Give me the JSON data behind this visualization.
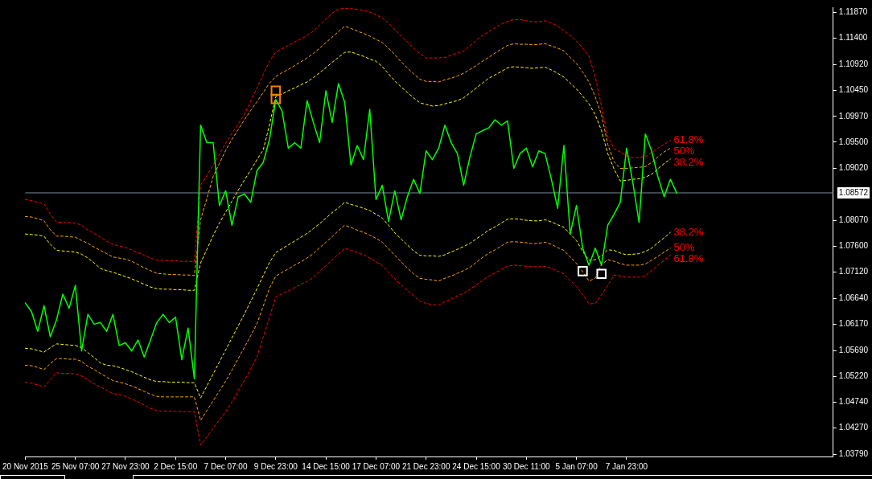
{
  "chart_data": {
    "type": "line",
    "categories": [
      "20 Nov 2015",
      null,
      null,
      null,
      null,
      null,
      null,
      null,
      "25 Nov 07:00",
      null,
      null,
      null,
      null,
      null,
      null,
      null,
      "27 Nov 23:00",
      null,
      null,
      null,
      null,
      null,
      null,
      null,
      "2 Dec 15:00",
      null,
      null,
      null,
      null,
      null,
      null,
      null,
      "7 Dec 07:00",
      null,
      null,
      null,
      null,
      null,
      null,
      null,
      "9 Dec 23:00",
      null,
      null,
      null,
      null,
      null,
      null,
      null,
      "14 Dec 15:00",
      null,
      null,
      null,
      null,
      null,
      null,
      null,
      "17 Dec 07:00",
      null,
      null,
      null,
      null,
      null,
      null,
      null,
      "21 Dec 23:00",
      null,
      null,
      null,
      null,
      null,
      null,
      null,
      "24 Dec 15:00",
      null,
      null,
      null,
      null,
      null,
      null,
      null,
      "30 Dec 11:00",
      null,
      null,
      null,
      null,
      null,
      null,
      null,
      "5 Jan 07:00",
      null,
      null,
      null,
      null,
      null,
      null,
      null,
      "7 Jan 23:00",
      null,
      null,
      null,
      null,
      null,
      null,
      null,
      null,
      null,
      null,
      null,
      null,
      null,
      null,
      null,
      null,
      null,
      null,
      null,
      null,
      null,
      null,
      null,
      null,
      null,
      null,
      null,
      null,
      null,
      null,
      null,
      null,
      null
    ],
    "ylim": [
      1.0375,
      1.1196
    ],
    "yticks": [
      {
        "value": 1.0379,
        "label": "1.03790"
      },
      {
        "value": 1.0427,
        "label": "1.04270"
      },
      {
        "value": 1.0474,
        "label": "1.04740"
      },
      {
        "value": 1.0522,
        "label": "1.05220"
      },
      {
        "value": 1.0569,
        "label": "1.05690"
      },
      {
        "value": 1.0617,
        "label": "1.06170"
      },
      {
        "value": 1.0664,
        "label": "1.06640"
      },
      {
        "value": 1.0712,
        "label": "1.07120"
      },
      {
        "value": 1.076,
        "label": "1.07600"
      },
      {
        "value": 1.0807,
        "label": "1.08070"
      },
      {
        "value": 1.0902,
        "label": "1.09020"
      },
      {
        "value": 1.095,
        "label": "1.09500"
      },
      {
        "value": 1.0997,
        "label": "1.09970"
      },
      {
        "value": 1.1045,
        "label": "1.10450"
      },
      {
        "value": 1.1092,
        "label": "1.10920"
      },
      {
        "value": 1.114,
        "label": "1.11400"
      },
      {
        "value": 1.1187,
        "label": "1.11870"
      }
    ],
    "series": [
      {
        "color": "#ff0000",
        "line_style": "dashed",
        "values": [
          1.0845,
          1.0843,
          1.084,
          1.0837,
          1.0818,
          1.0804,
          1.0803,
          1.0803,
          1.0802,
          1.0798,
          1.0789,
          1.0783,
          1.0776,
          1.0769,
          1.0763,
          1.076,
          1.0757,
          1.0753,
          1.0748,
          1.0743,
          1.0738,
          1.0734,
          1.0734,
          1.0733,
          1.0733,
          1.0732,
          1.0732,
          1.0731,
          1.0871,
          1.0889,
          1.0908,
          1.0928,
          1.0948,
          1.0966,
          1.0983,
          1.1001,
          1.1025,
          1.1049,
          1.1074,
          1.1098,
          1.1115,
          1.1121,
          1.1127,
          1.1133,
          1.1139,
          1.1145,
          1.1153,
          1.1164,
          1.1175,
          1.1186,
          1.1193,
          1.1195,
          1.1194,
          1.1193,
          1.1191,
          1.1188,
          1.1183,
          1.1177,
          1.1168,
          1.1156,
          1.1144,
          1.1133,
          1.1122,
          1.1112,
          1.1104,
          1.1104,
          1.1104,
          1.1105,
          1.1109,
          1.1113,
          1.1117,
          1.1126,
          1.1136,
          1.1145,
          1.1152,
          1.1159,
          1.1166,
          1.1171,
          1.1174,
          1.1174,
          1.1172,
          1.117,
          1.117,
          1.1172,
          1.1168,
          1.1162,
          1.1154,
          1.1145,
          1.1135,
          1.1122,
          1.1107,
          1.107,
          1.1016,
          1.096,
          1.0938,
          1.0932,
          1.0925,
          1.0922,
          1.0922,
          1.0923,
          1.0931,
          1.0939,
          1.0946,
          1.0953,
          null,
          null,
          null,
          null,
          null,
          null,
          null,
          null,
          null,
          null,
          null,
          null,
          null,
          null,
          null,
          null,
          null,
          null,
          null,
          null,
          null,
          null,
          null,
          null,
          null,
          null
        ]
      },
      {
        "color": "#ffa500",
        "line_style": "dashed",
        "values": [
          1.0814,
          1.0813,
          1.081,
          1.0806,
          1.079,
          1.0778,
          1.0778,
          1.0777,
          1.0776,
          1.077,
          1.0765,
          1.0758,
          1.0752,
          1.0746,
          1.074,
          1.0738,
          1.0736,
          1.0732,
          1.0726,
          1.072,
          1.0715,
          1.071,
          1.0709,
          1.0708,
          1.0708,
          1.0707,
          1.0707,
          1.0706,
          1.0808,
          1.0847,
          1.0887,
          1.0911,
          1.0935,
          1.0955,
          1.0973,
          1.0991,
          1.1008,
          1.1024,
          1.1041,
          1.1058,
          1.107,
          1.1077,
          1.1083,
          1.109,
          1.1097,
          1.1104,
          1.1112,
          1.1122,
          1.1132,
          1.1142,
          1.1152,
          1.1162,
          1.1158,
          1.1153,
          1.1149,
          1.1144,
          1.1138,
          1.1132,
          1.1122,
          1.111,
          1.1097,
          1.1086,
          1.1075,
          1.1065,
          1.1061,
          1.1061,
          1.106,
          1.1064,
          1.1067,
          1.1071,
          1.1076,
          1.1083,
          1.109,
          1.1098,
          1.1105,
          1.1113,
          1.112,
          1.1127,
          1.113,
          1.1129,
          1.1129,
          1.1128,
          1.1129,
          1.113,
          1.1126,
          1.1122,
          1.1117,
          1.1105,
          1.1094,
          1.1078,
          1.106,
          1.1033,
          1.1,
          1.0946,
          1.0914,
          1.0902,
          1.0902,
          1.0903,
          1.0904,
          1.0905,
          1.0913,
          1.0923,
          1.0932,
          1.0939,
          null,
          null,
          null,
          null,
          null,
          null,
          null,
          null,
          null,
          null,
          null,
          null,
          null,
          null,
          null,
          null,
          null,
          null,
          null,
          null,
          null,
          null,
          null,
          null,
          null,
          null
        ]
      },
      {
        "color": "#ffff00",
        "line_style": "dashed",
        "values": [
          1.0782,
          1.0781,
          1.078,
          1.0778,
          1.0763,
          1.0752,
          1.0751,
          1.075,
          1.0749,
          1.0745,
          1.0738,
          1.0729,
          1.0719,
          1.0715,
          1.0712,
          1.0708,
          1.0704,
          1.07,
          1.0695,
          1.069,
          1.0685,
          1.0682,
          1.0681,
          1.0681,
          1.068,
          1.068,
          1.0679,
          1.0679,
          1.0729,
          1.0754,
          1.0779,
          1.0802,
          1.0822,
          1.0842,
          1.0862,
          1.0881,
          1.0899,
          1.0918,
          1.0936,
          1.0982,
          1.1033,
          1.1038,
          1.1044,
          1.1049,
          1.1055,
          1.106,
          1.1068,
          1.1077,
          1.1086,
          1.1096,
          1.1105,
          1.1114,
          1.1115,
          1.1111,
          1.1107,
          1.1102,
          1.1098,
          1.1088,
          1.1075,
          1.1062,
          1.1051,
          1.1041,
          1.1031,
          1.1022,
          1.1019,
          1.1016,
          1.1017,
          1.102,
          1.1023,
          1.1026,
          1.1031,
          1.104,
          1.1049,
          1.1058,
          1.1067,
          1.1073,
          1.1079,
          1.1086,
          1.1088,
          1.1087,
          1.1086,
          1.1085,
          1.1086,
          1.1087,
          1.1082,
          1.1076,
          1.1069,
          1.1058,
          1.1047,
          1.1034,
          1.102,
          1.1,
          1.0971,
          1.0929,
          1.0901,
          1.0879,
          1.088,
          1.0882,
          1.0883,
          1.0886,
          1.0891,
          1.0901,
          1.0911,
          1.0919,
          null,
          null,
          null,
          null,
          null,
          null,
          null,
          null,
          null,
          null,
          null,
          null,
          null,
          null,
          null,
          null,
          null,
          null,
          null,
          null,
          null,
          null,
          null,
          null,
          null,
          null
        ]
      },
      {
        "color": "#ffff00",
        "line_style": "dashed",
        "values": [
          1.0573,
          1.0572,
          1.0569,
          1.0566,
          1.0574,
          1.0581,
          1.058,
          1.0579,
          1.0578,
          1.0574,
          1.0565,
          1.0556,
          1.0546,
          1.0542,
          1.0541,
          1.0538,
          1.0534,
          1.053,
          1.0525,
          1.052,
          1.0515,
          1.0512,
          1.0512,
          1.0511,
          1.0511,
          1.0511,
          1.051,
          1.051,
          1.0482,
          1.0504,
          1.0526,
          1.0548,
          1.057,
          1.0592,
          1.0614,
          1.0636,
          1.0659,
          1.0682,
          1.0706,
          1.073,
          1.0748,
          1.0755,
          1.0762,
          1.0769,
          1.0776,
          1.0783,
          1.0792,
          1.0801,
          1.0811,
          1.0821,
          1.083,
          1.084,
          1.0836,
          1.0833,
          1.0829,
          1.0825,
          1.0818,
          1.0811,
          1.0798,
          1.0784,
          1.0773,
          1.0762,
          1.0751,
          1.0743,
          1.0742,
          1.0742,
          1.0741,
          1.0744,
          1.0749,
          1.0754,
          1.0759,
          1.0765,
          1.0773,
          1.0781,
          1.0789,
          1.0795,
          1.0802,
          1.0809,
          1.081,
          1.0809,
          1.0807,
          1.0806,
          1.0806,
          1.0808,
          1.0804,
          1.0799,
          1.0794,
          1.0782,
          1.077,
          1.075,
          1.0734,
          1.0735,
          1.0742,
          1.0753,
          1.0752,
          1.0747,
          1.0744,
          1.0745,
          1.0746,
          1.075,
          1.0756,
          1.0766,
          1.0775,
          1.0785,
          null,
          null,
          null,
          null,
          null,
          null,
          null,
          null,
          null,
          null,
          null,
          null,
          null,
          null,
          null,
          null,
          null,
          null,
          null,
          null,
          null,
          null,
          null,
          null,
          null,
          null
        ]
      },
      {
        "color": "#ffa500",
        "line_style": "dashed",
        "values": [
          1.0542,
          1.0541,
          1.0538,
          1.0534,
          1.0545,
          1.0554,
          1.0554,
          1.0553,
          1.0553,
          1.0549,
          1.054,
          1.0534,
          1.0527,
          1.052,
          1.0514,
          1.0511,
          1.0508,
          1.0504,
          1.0499,
          1.0494,
          1.0489,
          1.0485,
          1.0484,
          1.0484,
          1.0484,
          1.0484,
          1.0484,
          1.0484,
          1.0441,
          1.0459,
          1.0477,
          1.0495,
          1.0513,
          1.0533,
          1.0554,
          1.0575,
          1.0596,
          1.0618,
          1.065,
          1.0683,
          1.0705,
          1.0712,
          1.0718,
          1.0725,
          1.0731,
          1.0738,
          1.0746,
          1.0757,
          1.0767,
          1.0777,
          1.0788,
          1.0798,
          1.0794,
          1.0789,
          1.0785,
          1.078,
          1.0774,
          1.0767,
          1.0755,
          1.0743,
          1.0731,
          1.072,
          1.0709,
          1.0701,
          1.0699,
          1.0698,
          1.0696,
          1.0701,
          1.0705,
          1.071,
          1.0715,
          1.0721,
          1.073,
          1.0739,
          1.0747,
          1.0753,
          1.076,
          1.0767,
          1.0768,
          1.0767,
          1.0766,
          1.0764,
          1.0765,
          1.0767,
          1.0763,
          1.0757,
          1.0752,
          1.074,
          1.0728,
          1.0713,
          1.0696,
          1.0701,
          1.0726,
          1.0735,
          1.0732,
          1.0728,
          1.0725,
          1.0725,
          1.0725,
          1.0727,
          1.0734,
          1.0741,
          1.0749,
          1.0756,
          null,
          null,
          null,
          null,
          null,
          null,
          null,
          null,
          null,
          null,
          null,
          null,
          null,
          null,
          null,
          null,
          null,
          null,
          null,
          null,
          null,
          null,
          null,
          null,
          null,
          null
        ]
      },
      {
        "color": "#ff0000",
        "line_style": "dashed",
        "values": [
          1.0511,
          1.0509,
          1.0506,
          1.0502,
          1.0516,
          1.0528,
          1.0527,
          1.0527,
          1.0526,
          1.0522,
          1.0515,
          1.0508,
          1.0502,
          1.0496,
          1.049,
          1.0488,
          1.0485,
          1.048,
          1.0475,
          1.0469,
          1.0463,
          1.0459,
          1.0458,
          1.0458,
          1.0458,
          1.0457,
          1.0457,
          1.0457,
          1.0396,
          1.0411,
          1.0427,
          1.0442,
          1.0457,
          1.0475,
          1.0495,
          1.0515,
          1.0535,
          1.0557,
          1.0593,
          1.063,
          1.0667,
          1.0673,
          1.0678,
          1.0684,
          1.069,
          1.0695,
          1.0703,
          1.0714,
          1.0724,
          1.0735,
          1.0745,
          1.0756,
          1.0752,
          1.0748,
          1.0744,
          1.0738,
          1.0731,
          1.0724,
          1.0712,
          1.07,
          1.0689,
          1.0679,
          1.0669,
          1.0659,
          1.0655,
          1.0653,
          1.0652,
          1.0658,
          1.0663,
          1.0669,
          1.0674,
          1.0681,
          1.0689,
          1.0697,
          1.0705,
          1.0711,
          1.0717,
          1.0723,
          1.0725,
          1.0724,
          1.0723,
          1.0722,
          1.0722,
          1.0723,
          1.0719,
          1.0714,
          1.0709,
          1.0697,
          1.0686,
          1.0671,
          1.0654,
          1.0655,
          1.0671,
          1.0688,
          1.0707,
          1.0705,
          1.0703,
          1.0703,
          1.0703,
          1.0705,
          1.0715,
          1.0725,
          1.0734,
          1.0743,
          null,
          null,
          null,
          null,
          null,
          null,
          null,
          null,
          null,
          null,
          null,
          null,
          null,
          null,
          null,
          null,
          null,
          null,
          null,
          null,
          null,
          null,
          null,
          null,
          null,
          null
        ]
      },
      {
        "color": "#00ff00",
        "values": [
          1.0656,
          1.064,
          1.0604,
          1.0651,
          1.0594,
          1.0625,
          1.0672,
          1.0646,
          1.0688,
          1.0568,
          1.0635,
          1.0617,
          1.062,
          1.0604,
          1.0635,
          1.0578,
          1.0583,
          1.0568,
          1.0588,
          1.0557,
          1.0588,
          1.062,
          1.0635,
          1.062,
          1.063,
          1.0552,
          1.061,
          1.0517,
          1.0981,
          1.0949,
          1.0949,
          1.0834,
          1.0861,
          1.0798,
          1.085,
          1.0855,
          1.084,
          1.0898,
          1.0913,
          1.0955,
          1.1028,
          1.1007,
          1.0939,
          1.0949,
          1.0939,
          1.1026,
          1.0986,
          1.0949,
          1.1044,
          1.0986,
          1.1057,
          1.1023,
          1.0908,
          1.0944,
          1.0918,
          1.101,
          1.0845,
          1.0871,
          1.0805,
          1.0861,
          1.0808,
          1.085,
          1.0882,
          1.0856,
          1.0934,
          1.0918,
          1.0939,
          1.0981,
          1.0949,
          1.0929,
          1.0871,
          1.0923,
          1.0965,
          1.0971,
          1.0976,
          1.0991,
          1.0981,
          1.0989,
          1.0902,
          1.0929,
          1.0939,
          1.0905,
          1.0934,
          1.0929,
          1.0882,
          1.0829,
          1.0944,
          1.0782,
          1.0834,
          1.0756,
          1.0725,
          1.0756,
          1.0725,
          1.0798,
          1.0818,
          1.084,
          1.0939,
          1.0876,
          1.0803,
          1.0965,
          1.0934,
          1.0887,
          1.085,
          1.0882,
          1.0857,
          null,
          null,
          null,
          null,
          null,
          null,
          null,
          null,
          null,
          null,
          null,
          null,
          null,
          null,
          null,
          null,
          null,
          null,
          null,
          null,
          null,
          null,
          null,
          null,
          null
        ]
      },
      {
        "type": "scatter",
        "marker": "square",
        "color": "#ff8000",
        "values": [
          null,
          null,
          null,
          null,
          null,
          null,
          null,
          null,
          null,
          null,
          null,
          null,
          null,
          null,
          null,
          null,
          null,
          null,
          null,
          null,
          null,
          null,
          null,
          null,
          null,
          null,
          null,
          null,
          null,
          null,
          null,
          null,
          null,
          null,
          null,
          null,
          null,
          null,
          null,
          null,
          1.1044,
          null,
          null,
          null,
          null,
          null,
          null,
          null,
          null,
          null,
          null,
          null,
          null,
          null,
          null,
          null,
          null,
          null,
          null,
          null,
          null,
          null,
          null,
          null,
          null,
          null,
          null,
          null,
          null,
          null,
          null,
          null,
          null,
          null,
          null,
          null,
          null,
          null,
          null,
          null,
          null,
          null,
          null,
          null,
          null,
          null,
          null,
          null,
          null,
          null,
          null,
          null,
          null,
          null,
          null,
          null,
          null,
          null,
          null,
          null,
          null,
          null,
          null,
          null,
          null,
          null,
          null,
          null,
          null,
          null,
          null,
          null,
          null,
          null,
          null,
          null,
          null,
          null,
          null,
          null,
          null,
          null,
          null,
          null,
          null,
          null,
          null,
          null,
          null,
          null
        ]
      },
      {
        "type": "scatter",
        "marker": "square",
        "color": "#ff8000",
        "values": [
          null,
          null,
          null,
          null,
          null,
          null,
          null,
          null,
          null,
          null,
          null,
          null,
          null,
          null,
          null,
          null,
          null,
          null,
          null,
          null,
          null,
          null,
          null,
          null,
          null,
          null,
          null,
          null,
          null,
          null,
          null,
          null,
          null,
          null,
          null,
          null,
          null,
          null,
          null,
          null,
          1.1029,
          null,
          null,
          null,
          null,
          null,
          null,
          null,
          null,
          null,
          null,
          null,
          null,
          null,
          null,
          null,
          null,
          null,
          null,
          null,
          null,
          null,
          null,
          null,
          null,
          null,
          null,
          null,
          null,
          null,
          null,
          null,
          null,
          null,
          null,
          null,
          null,
          null,
          null,
          null,
          null,
          null,
          null,
          null,
          null,
          null,
          null,
          null,
          null,
          null,
          null,
          null,
          null,
          null,
          null,
          null,
          null,
          null,
          null,
          null,
          null,
          null,
          null,
          null,
          null,
          null,
          null,
          null,
          null,
          null,
          null,
          null,
          null,
          null,
          null,
          null,
          null,
          null,
          null,
          null,
          null,
          null,
          null,
          null,
          null,
          null,
          null,
          null,
          null,
          null
        ]
      },
      {
        "type": "scatter",
        "marker": "square",
        "color": "#ffffff",
        "values": [
          null,
          null,
          null,
          null,
          null,
          null,
          null,
          null,
          null,
          null,
          null,
          null,
          null,
          null,
          null,
          null,
          null,
          null,
          null,
          null,
          null,
          null,
          null,
          null,
          null,
          null,
          null,
          null,
          null,
          null,
          null,
          null,
          null,
          null,
          null,
          null,
          null,
          null,
          null,
          null,
          null,
          null,
          null,
          null,
          null,
          null,
          null,
          null,
          null,
          null,
          null,
          null,
          null,
          null,
          null,
          null,
          null,
          null,
          null,
          null,
          null,
          null,
          null,
          null,
          null,
          null,
          null,
          null,
          null,
          null,
          null,
          null,
          null,
          null,
          null,
          null,
          null,
          null,
          null,
          null,
          null,
          null,
          null,
          null,
          null,
          null,
          null,
          null,
          null,
          1.0714,
          null,
          null,
          1.0709,
          null,
          null,
          null,
          null,
          null,
          null,
          null,
          null,
          null,
          null,
          null,
          null,
          null,
          null,
          null,
          null,
          null,
          null,
          null,
          null,
          null,
          null,
          null,
          null,
          null,
          null,
          null,
          null,
          null,
          null,
          null,
          null,
          null,
          null,
          null,
          null,
          null
        ]
      }
    ],
    "ref_lines": [
      {
        "axis": "y",
        "value": 1.08572,
        "label": "1.08572",
        "color": "#778899"
      }
    ],
    "annotations": [
      "61.8%",
      "50%",
      "38.2%",
      "38.2%",
      "50%",
      "61.8%"
    ]
  }
}
